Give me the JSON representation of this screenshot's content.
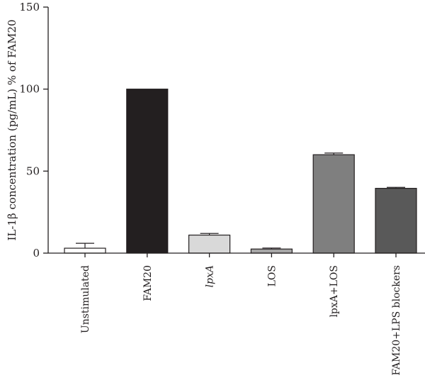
{
  "chart_data": {
    "type": "bar",
    "ylabel": "IL-1β concentration (pg/mL) % of FAM20",
    "ylim": [
      0,
      150
    ],
    "yticks": [
      0,
      50,
      100,
      150
    ],
    "grid": false,
    "legend": "none",
    "categories": [
      "Unstimulated",
      "FAM20",
      "lpxA",
      "LOS",
      "lpxA+LOS",
      "FAM20+LPS blockers"
    ],
    "category_italic": [
      false,
      false,
      true,
      false,
      false,
      false
    ],
    "values": [
      3,
      100,
      11,
      2.5,
      60,
      39.5
    ],
    "errors": [
      3,
      0,
      1,
      0.6,
      1,
      0.6
    ],
    "colors": [
      "#ffffff",
      "#231f20",
      "#d9d9d9",
      "#a6a6a6",
      "#7f7f7f",
      "#595959"
    ]
  }
}
